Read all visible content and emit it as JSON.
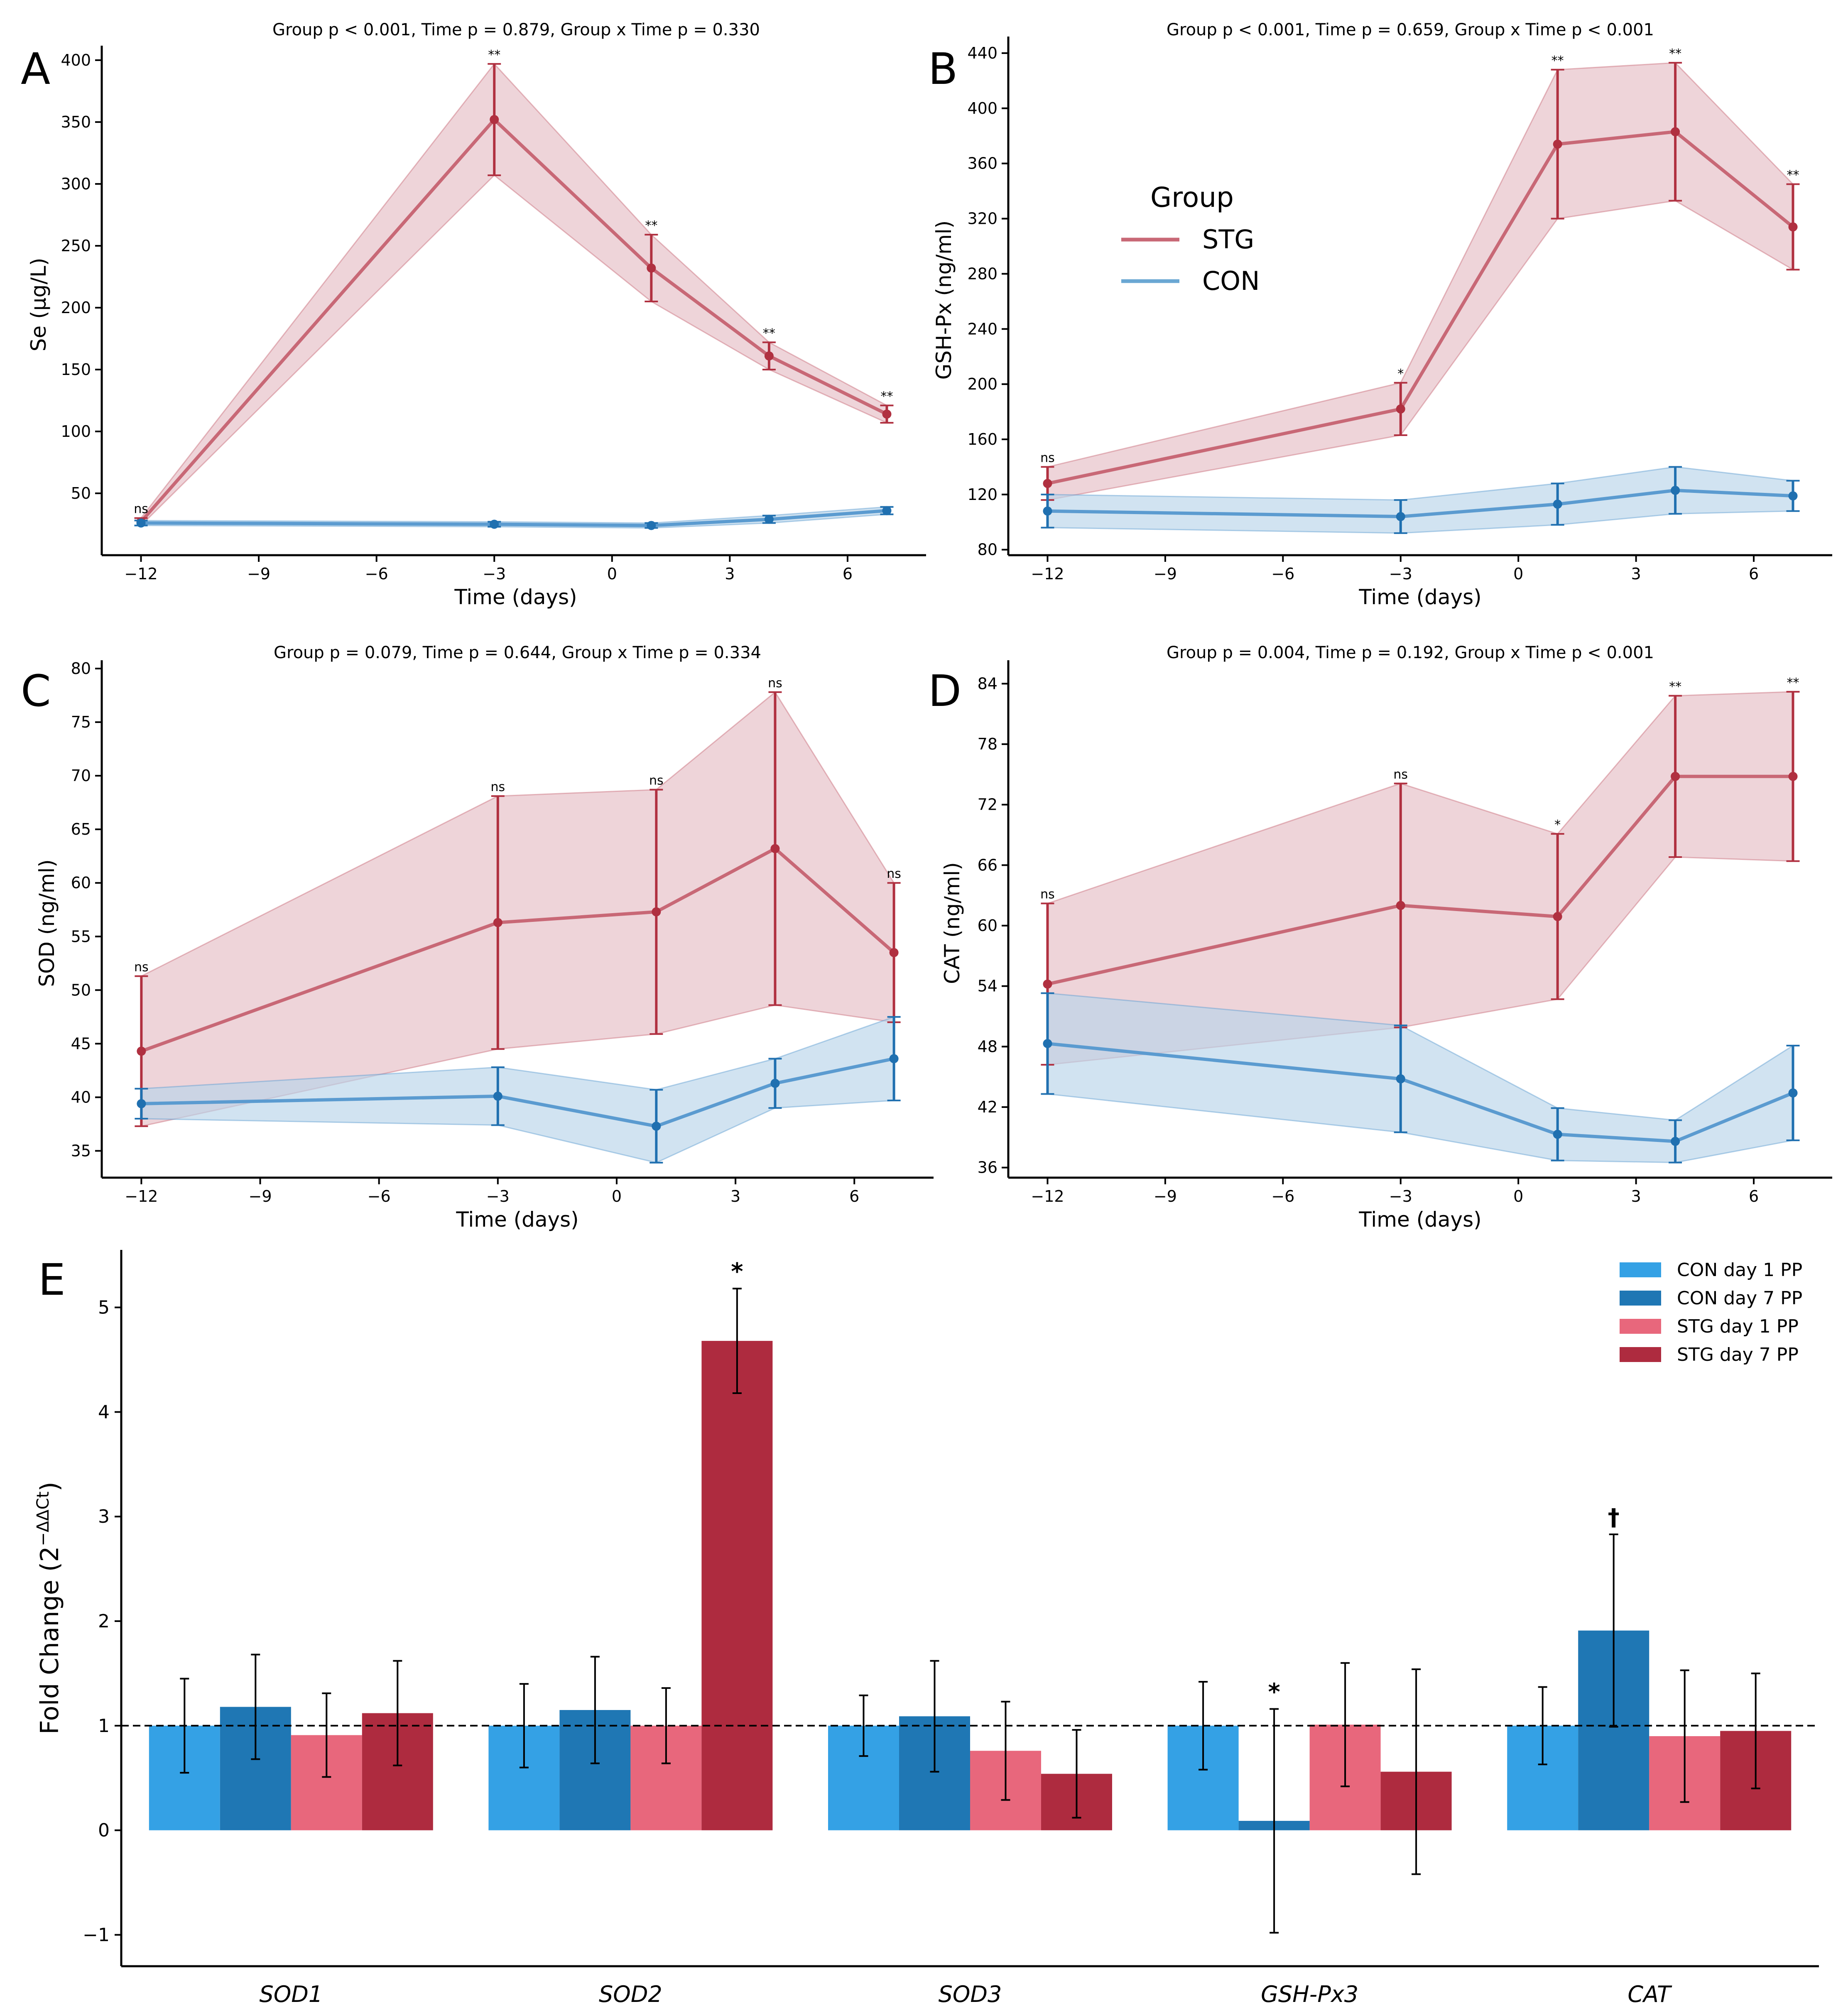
{
  "legend_top": {
    "title": "Group",
    "items": [
      {
        "label": "STG",
        "color": "#c86876"
      },
      {
        "label": "CON",
        "color": "#6aa7d3"
      }
    ]
  },
  "colors": {
    "stg_line": "#c86876",
    "stg_point": "#b03040",
    "stg_fill": "#e0b0ba",
    "con_line": "#5b9bd0",
    "con_point": "#2070b0",
    "con_fill": "#b9d4ea"
  },
  "chart_data": [
    {
      "id": "A",
      "type": "line",
      "letter": "A",
      "title": "Group p < 0.001, Time p = 0.879, Group x Time p = 0.330",
      "xlabel": "Time (days)",
      "ylabel": "Se (μg/L)",
      "xlim": [
        -13,
        8
      ],
      "ylim": [
        0,
        405
      ],
      "xticks": [
        -12,
        -9,
        -6,
        -3,
        0,
        3,
        6
      ],
      "xtick_labels": [
        "−12",
        "−9",
        "−6",
        "−3",
        "0",
        "3",
        "6"
      ],
      "yticks": [
        50,
        100,
        150,
        200,
        250,
        300,
        350,
        400
      ],
      "x": [
        -12,
        -3,
        1,
        4,
        7
      ],
      "series": [
        {
          "name": "STG",
          "values": [
            27,
            352,
            232,
            161,
            114
          ],
          "err": [
            3,
            45,
            27,
            11,
            7
          ],
          "band": [
            3,
            45,
            27,
            11,
            7
          ]
        },
        {
          "name": "CON",
          "values": [
            26,
            25,
            24,
            29,
            36
          ],
          "err": [
            2,
            2,
            2,
            3,
            3
          ],
          "band": [
            2,
            2,
            2,
            3,
            3
          ]
        }
      ],
      "sig_labels": [
        "ns",
        "**",
        "**",
        "**",
        "**"
      ]
    },
    {
      "id": "B",
      "type": "line",
      "letter": "B",
      "title": "Group p < 0.001, Time p = 0.659, Group x Time p < 0.001",
      "xlabel": "Time (days)",
      "ylabel": "GSH-Px (ng/ml)",
      "xlim": [
        -13,
        8
      ],
      "ylim": [
        76,
        446
      ],
      "xticks": [
        -12,
        -9,
        -6,
        -3,
        0,
        3,
        6
      ],
      "xtick_labels": [
        "−12",
        "−9",
        "−6",
        "−3",
        "0",
        "3",
        "6"
      ],
      "yticks": [
        80,
        120,
        160,
        200,
        240,
        280,
        320,
        360,
        400,
        440
      ],
      "x": [
        -12,
        -3,
        1,
        4,
        7
      ],
      "series": [
        {
          "name": "STG",
          "values": [
            128,
            182,
            374,
            383,
            314
          ],
          "err": [
            12,
            19,
            54,
            50,
            31
          ],
          "band": [
            12,
            19,
            54,
            50,
            31
          ]
        },
        {
          "name": "CON",
          "values": [
            108,
            104,
            113,
            123,
            119
          ],
          "err": [
            12,
            12,
            15,
            17,
            11
          ],
          "band": [
            12,
            12,
            15,
            17,
            11
          ]
        }
      ],
      "sig_labels": [
        "ns",
        "*",
        "**",
        "**",
        "**"
      ]
    },
    {
      "id": "C",
      "type": "line",
      "letter": "C",
      "title": "Group p = 0.079, Time p = 0.644, Group x Time p = 0.334",
      "xlabel": "Time (days)",
      "ylabel": "SOD (ng/ml)",
      "xlim": [
        -13,
        8
      ],
      "ylim": [
        32.5,
        80
      ],
      "xticks": [
        -12,
        -9,
        -6,
        -3,
        0,
        3,
        6
      ],
      "xtick_labels": [
        "−12",
        "−9",
        "−6",
        "−3",
        "0",
        "3",
        "6"
      ],
      "yticks": [
        35,
        40,
        45,
        50,
        55,
        60,
        65,
        70,
        75,
        80
      ],
      "x": [
        -12,
        -3,
        1,
        4,
        7
      ],
      "series": [
        {
          "name": "STG",
          "values": [
            44.3,
            56.3,
            57.3,
            63.2,
            53.5
          ],
          "err": [
            7,
            11.8,
            11.4,
            14.6,
            6.5
          ],
          "band": [
            7,
            11.8,
            11.4,
            14.6,
            6.5
          ]
        },
        {
          "name": "CON",
          "values": [
            39.4,
            40.1,
            37.3,
            41.3,
            43.6
          ],
          "err": [
            1.4,
            2.7,
            3.4,
            2.3,
            3.9
          ],
          "band": [
            1.4,
            2.7,
            3.4,
            2.3,
            3.9
          ]
        }
      ],
      "sig_labels": [
        "ns",
        "ns",
        "ns",
        "ns",
        "ns"
      ]
    },
    {
      "id": "D",
      "type": "line",
      "letter": "D",
      "title": "Group p = 0.004, Time p = 0.192, Group x Time p < 0.001",
      "xlabel": "Time (days)",
      "ylabel": "CAT (ng/ml)",
      "xlim": [
        -13,
        8
      ],
      "ylim": [
        35,
        85.5
      ],
      "xticks": [
        -12,
        -9,
        -6,
        -3,
        0,
        3,
        6
      ],
      "xtick_labels": [
        "−12",
        "−9",
        "−6",
        "−3",
        "0",
        "3",
        "6"
      ],
      "yticks": [
        36,
        42,
        48,
        54,
        60,
        66,
        72,
        78,
        84
      ],
      "x": [
        -12,
        -3,
        1,
        4,
        7
      ],
      "series": [
        {
          "name": "STG",
          "values": [
            54.2,
            62.0,
            60.9,
            74.8,
            74.8
          ],
          "err": [
            8,
            12.1,
            8.2,
            8,
            8.4
          ],
          "band": [
            8,
            12.1,
            8.2,
            8,
            8.4
          ]
        },
        {
          "name": "CON",
          "values": [
            48.3,
            44.8,
            39.3,
            38.6,
            43.4
          ],
          "err": [
            5,
            5.3,
            2.6,
            2.1,
            4.7
          ],
          "band": [
            5,
            5.3,
            2.6,
            2.1,
            4.7
          ]
        }
      ],
      "sig_labels": [
        "ns",
        "ns",
        "*",
        "**",
        "**"
      ]
    },
    {
      "id": "E",
      "type": "bar",
      "letter": "E",
      "title": "",
      "xlabel": "",
      "ylabel_main": "Fold Change (2",
      "ylabel_sup": "−ΔΔCt",
      "ylabel_end": ")",
      "ylim": [
        -1.3,
        5.55
      ],
      "yticks": [
        -1,
        0,
        1,
        2,
        3,
        4,
        5
      ],
      "ytick_labels": [
        "−1",
        "0",
        "1",
        "2",
        "3",
        "4",
        "5"
      ],
      "categories": [
        "SOD1",
        "SOD2",
        "SOD3",
        "GSH-Px3",
        "CAT"
      ],
      "reference_line": 1,
      "series": [
        {
          "name": "CON day 1 PP",
          "color": "#34a1e5",
          "values": [
            1.0,
            1.0,
            1.0,
            1.0,
            1.0
          ],
          "err": [
            0.45,
            0.4,
            0.29,
            0.42,
            0.37
          ]
        },
        {
          "name": "CON day 7 PP",
          "color": "#1f77b4",
          "values": [
            1.18,
            1.15,
            1.09,
            0.09,
            1.91
          ],
          "err": [
            0.5,
            0.51,
            0.53,
            1.07,
            0.92
          ]
        },
        {
          "name": "STG day 1 PP",
          "color": "#e8677c",
          "values": [
            0.91,
            1.0,
            0.76,
            1.01,
            0.9
          ],
          "err": [
            0.4,
            0.36,
            0.47,
            0.59,
            0.63
          ]
        },
        {
          "name": "STG day 7 PP",
          "color": "#ae2b3f",
          "values": [
            1.12,
            4.68,
            0.54,
            0.56,
            0.95
          ],
          "err": [
            0.5,
            0.5,
            0.42,
            0.98,
            0.55
          ]
        }
      ],
      "annotations": [
        {
          "category": "SOD2",
          "series": "STG day 7 PP",
          "text": "*"
        },
        {
          "category": "GSH-Px3",
          "series": "CON day 7 PP",
          "text": "*"
        },
        {
          "category": "CAT",
          "series": "CON day 7 PP",
          "text": "†"
        }
      ]
    }
  ]
}
